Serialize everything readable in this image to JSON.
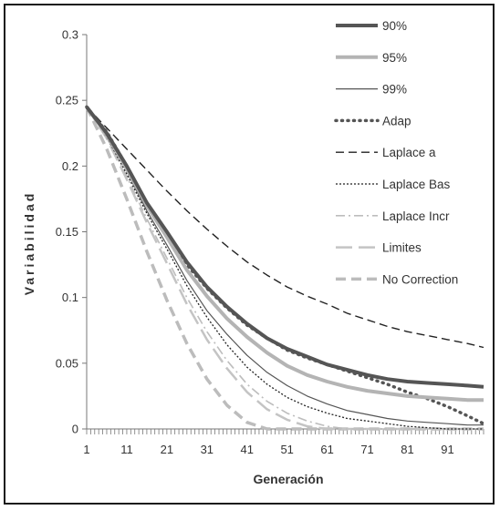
{
  "chart_data": {
    "type": "line",
    "title": "",
    "xlabel": "Generación",
    "ylabel": "Variabilidad",
    "xlim": [
      1,
      100
    ],
    "ylim": [
      0,
      0.3
    ],
    "x_ticks": [
      "1",
      "11",
      "21",
      "31",
      "41",
      "51",
      "61",
      "71",
      "81",
      "91"
    ],
    "y_ticks": [
      "0",
      "0.05",
      "0.1",
      "0.15",
      "0.2",
      "0.25",
      "0.3"
    ],
    "legend_position": "right",
    "grid": false,
    "x": [
      1,
      6,
      11,
      16,
      21,
      26,
      31,
      36,
      41,
      46,
      51,
      56,
      61,
      66,
      71,
      76,
      81,
      86,
      91,
      96,
      100
    ],
    "series": [
      {
        "name": "90%",
        "color": "#555555",
        "style": "solid-thick",
        "values": [
          0.245,
          0.225,
          0.2,
          0.172,
          0.15,
          0.127,
          0.108,
          0.093,
          0.08,
          0.069,
          0.061,
          0.055,
          0.049,
          0.045,
          0.041,
          0.038,
          0.036,
          0.035,
          0.034,
          0.033,
          0.032
        ]
      },
      {
        "name": "95%",
        "color": "#b4b4b4",
        "style": "solid-thick",
        "values": [
          0.245,
          0.224,
          0.198,
          0.17,
          0.146,
          0.121,
          0.101,
          0.084,
          0.07,
          0.058,
          0.048,
          0.041,
          0.036,
          0.032,
          0.029,
          0.027,
          0.025,
          0.024,
          0.023,
          0.022,
          0.022
        ]
      },
      {
        "name": "99%",
        "color": "#555555",
        "style": "solid-thin",
        "values": [
          0.245,
          0.223,
          0.196,
          0.166,
          0.14,
          0.113,
          0.09,
          0.072,
          0.056,
          0.043,
          0.033,
          0.025,
          0.019,
          0.014,
          0.011,
          0.008,
          0.006,
          0.005,
          0.004,
          0.003,
          0.003
        ]
      },
      {
        "name": "Adap",
        "color": "#555555",
        "style": "dotted-thick",
        "values": [
          0.245,
          0.226,
          0.2,
          0.172,
          0.148,
          0.125,
          0.107,
          0.092,
          0.079,
          0.069,
          0.06,
          0.054,
          0.049,
          0.044,
          0.039,
          0.034,
          0.028,
          0.023,
          0.017,
          0.01,
          0.004
        ]
      },
      {
        "name": "Laplace a",
        "color": "#222222",
        "style": "dashed",
        "values": [
          0.245,
          0.229,
          0.213,
          0.197,
          0.181,
          0.166,
          0.152,
          0.139,
          0.127,
          0.117,
          0.108,
          0.101,
          0.095,
          0.088,
          0.083,
          0.078,
          0.074,
          0.071,
          0.068,
          0.065,
          0.062
        ]
      },
      {
        "name": "Laplace Bas",
        "color": "#222222",
        "style": "dotted-fine",
        "values": [
          0.245,
          0.222,
          0.194,
          0.164,
          0.137,
          0.109,
          0.085,
          0.064,
          0.047,
          0.034,
          0.024,
          0.017,
          0.012,
          0.008,
          0.006,
          0.004,
          0.002,
          0.001,
          0.0,
          0.0,
          0.0
        ]
      },
      {
        "name": "Laplace Incr",
        "color": "#bdbdbd",
        "style": "dash-dot",
        "values": [
          0.245,
          0.222,
          0.192,
          0.16,
          0.13,
          0.1,
          0.074,
          0.052,
          0.034,
          0.021,
          0.012,
          0.006,
          0.002,
          0.0,
          0.0,
          0.0,
          0.0,
          0.0,
          0.0,
          0.0,
          0.0
        ]
      },
      {
        "name": "Limites",
        "color": "#c4c4c4",
        "style": "long-dash",
        "values": [
          0.245,
          0.221,
          0.19,
          0.157,
          0.126,
          0.095,
          0.068,
          0.046,
          0.028,
          0.015,
          0.007,
          0.002,
          0.0,
          0.0,
          0.0,
          0.0,
          0.0,
          0.0,
          0.0,
          0.0,
          0.0
        ]
      },
      {
        "name": "No Correction",
        "color": "#bcbcbc",
        "style": "dashed-thick",
        "values": [
          0.245,
          0.213,
          0.175,
          0.135,
          0.098,
          0.065,
          0.038,
          0.018,
          0.005,
          0.0,
          0.0,
          0.0,
          0.0,
          0.0,
          0.0,
          0.0,
          0.0,
          0.0,
          0.0,
          0.0,
          0.0
        ]
      }
    ]
  }
}
